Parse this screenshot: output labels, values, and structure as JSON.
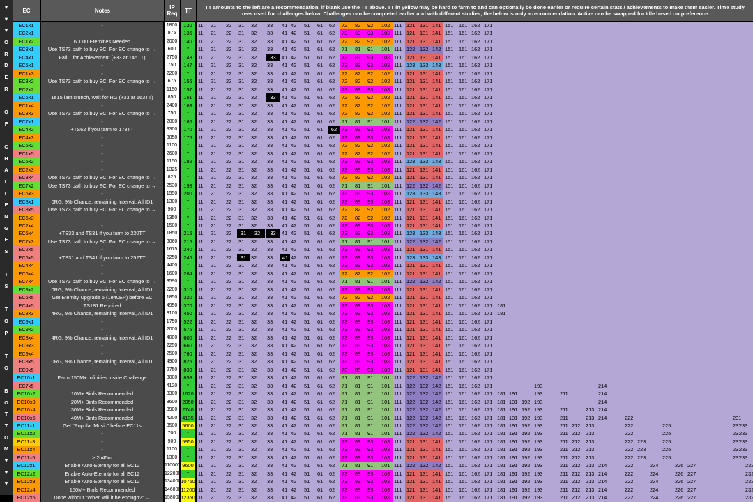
{
  "sidebar_text": "▼▼▼ORDER OF CHALLENGES IS TOP TO BOTTOM▼▼▼",
  "headers": {
    "ec": "EC",
    "notes": "Notes",
    "ip_req": "IP Req",
    "tt": "TT",
    "banner": "TT amounts to the left are a recommendation, if blank use the TT above. TT in yellow may be hard to farm to and can optionally be done earlier or require certain stats / achievements to make them easier. Time study trees used for challenges below. Challenges can be completed earlier and with different studies, the below is only a recommendation. Active can be swapped for Idle based on preference."
  },
  "colors": {
    "ec_cyan": "#33ccff",
    "ec_green": "#66dd33",
    "ec_orange": "#ff9900",
    "ec_pink": "#f08080",
    "ec_yellow": "#ffcc00",
    "tt_green": "#33cc33",
    "tt_yellow": "#ffff00",
    "tree_lavender": "#b4a7d6",
    "tree_orange": "#ff9900",
    "tree_magenta": "#ff00ff",
    "tree_green": "#93c47d",
    "tree_red": "#e06666",
    "tree_blue": "#6fa8dc",
    "tree_purple": "#8e7cc3"
  },
  "rows": [
    {
      "ec": "EC1x1",
      "ecc": "c",
      "note": "-",
      "ip": "1800",
      "tt": "130",
      "path": "A",
      "x": {}
    },
    {
      "ec": "EC2x1",
      "ecc": "c",
      "note": "-",
      "ip": "975",
      "tt": "135",
      "path": "I",
      "x": {}
    },
    {
      "ec": "EC1x2",
      "ecc": "g",
      "note": "60000 Eternities Needed",
      "ip": "2000",
      "tt": "140",
      "path": "A",
      "x": {
        "11": "1",
        "21": "1"
      }
    },
    {
      "ec": "EC3x1",
      "ecc": "c",
      "note": "Use TS73 path to buy EC, For EC change to →",
      "ip": "600",
      "tt": "\"",
      "path": "P",
      "x": {}
    },
    {
      "ec": "EC4x1",
      "ecc": "c",
      "note": "Fail 1 for Achievement (+33 at 145TT)",
      "ip": "2750",
      "tt": "143",
      "path": "I",
      "x": {
        "33": "dk"
      }
    },
    {
      "ec": "EC5x1",
      "ecc": "c",
      "note": "-",
      "ip": "750",
      "tt": "147",
      "path": "S",
      "x": {}
    },
    {
      "ec": "EC1x3",
      "ecc": "o",
      "note": "-",
      "ip": "2200",
      "tt": "\"",
      "path": "A",
      "x": {}
    },
    {
      "ec": "EC3x2",
      "ecc": "g",
      "note": "Use TS73 path to buy EC, For EC change to →",
      "ip": "675",
      "tt": "155",
      "path": "A",
      "x": {}
    },
    {
      "ec": "EC2x2",
      "ecc": "g",
      "note": "-",
      "ip": "1150",
      "tt": "157",
      "path": "I",
      "x": {}
    },
    {
      "ec": "EC6x1",
      "ecc": "c",
      "note": "1e15 last crunch, wait for RG (+33 at 163TT)",
      "ip": "850",
      "tt": "161",
      "path": "A",
      "x": {
        "33": "dk"
      }
    },
    {
      "ec": "EC1x4",
      "ecc": "o",
      "note": "-",
      "ip": "2400",
      "tt": "163",
      "path": "A",
      "x": {}
    },
    {
      "ec": "EC3x3",
      "ecc": "o",
      "note": "Use TS73 path to buy EC, For EC change to →",
      "ip": "750",
      "tt": "\"",
      "path": "A",
      "x": {}
    },
    {
      "ec": "EC7x1",
      "ecc": "c",
      "note": "-",
      "ip": "2000",
      "tt": "166",
      "path": "P",
      "x": {}
    },
    {
      "ec": "EC4x2",
      "ecc": "g",
      "note": "+TS62 if you farm to 173TT",
      "ip": "3300",
      "tt": "170",
      "path": "I",
      "x": {
        "62": "dk"
      }
    },
    {
      "ec": "EC4x3",
      "ecc": "o",
      "note": "-",
      "ip": "3850",
      "tt": "176",
      "path": "I",
      "x": {}
    },
    {
      "ec": "EC6x2",
      "ecc": "g",
      "note": "-",
      "ip": "1100",
      "tt": "\"",
      "path": "A",
      "x": {}
    },
    {
      "ec": "EC1x5",
      "ecc": "p",
      "note": "-",
      "ip": "2600",
      "tt": "\"",
      "path": "A",
      "x": {}
    },
    {
      "ec": "EC5x2",
      "ecc": "g",
      "note": "-",
      "ip": "1150",
      "tt": "182",
      "path": "S",
      "x": {}
    },
    {
      "ec": "EC2x3",
      "ecc": "o",
      "note": "-",
      "ip": "1325",
      "tt": "\"",
      "path": "I",
      "x": {}
    },
    {
      "ec": "EC3x4",
      "ecc": "p",
      "note": "Use TS73 path to buy EC, For EC change to →",
      "ip": "825",
      "tt": "\"",
      "path": "A",
      "x": {}
    },
    {
      "ec": "EC7x2",
      "ecc": "g",
      "note": "Use TS73 path to buy EC, For EC change to →",
      "ip": "2530",
      "tt": "193",
      "path": "P",
      "x": {}
    },
    {
      "ec": "EC5x3",
      "ecc": "o",
      "note": "-",
      "ip": "1550",
      "tt": "200",
      "path": "S",
      "x": {}
    },
    {
      "ec": "EC8x1",
      "ecc": "c",
      "note": "0RG, 9% Chance, remaining Interval, All ID1",
      "ip": "1300",
      "tt": "\"",
      "path": "I",
      "x": {}
    },
    {
      "ec": "EC3x5",
      "ecc": "p",
      "note": "Use TS73 path to buy EC, For EC change to →",
      "ip": "900",
      "tt": "\"",
      "path": "A",
      "x": {}
    },
    {
      "ec": "EC6x3",
      "ecc": "o",
      "note": "-",
      "ip": "1350",
      "tt": "\"",
      "path": "A",
      "x": {}
    },
    {
      "ec": "EC2x4",
      "ecc": "o",
      "note": "-",
      "ip": "1500",
      "tt": "\"",
      "path": "I",
      "x": {}
    },
    {
      "ec": "EC5x4",
      "ecc": "o",
      "note": "+TS33 and TS31 if you farm to 220TT",
      "ip": "1850",
      "tt": "215",
      "path": "S",
      "x": {
        "31": "dk",
        "32": "dk",
        "33": "dk"
      }
    },
    {
      "ec": "EC7x3",
      "ecc": "o",
      "note": "Use TS73 path to buy EC, For EC change to →",
      "ip": "3060",
      "tt": "215",
      "path": "P",
      "x": {}
    },
    {
      "ec": "EC2x5",
      "ecc": "p",
      "note": "-",
      "ip": "1675",
      "tt": "240",
      "path": "I",
      "x": {}
    },
    {
      "ec": "EC5x5",
      "ecc": "p",
      "note": "+TS31 and TS41 if you farm to 252TT",
      "ip": "2250",
      "tt": "245",
      "path": "S",
      "x": {
        "31": "dk",
        "41": "dk"
      }
    },
    {
      "ec": "EC4x4",
      "ecc": "o",
      "note": "-",
      "ip": "4400",
      "tt": "\"",
      "path": "I",
      "x": {}
    },
    {
      "ec": "EC6x4",
      "ecc": "o",
      "note": "-",
      "ip": "1600",
      "tt": "264",
      "path": "A",
      "x": {}
    },
    {
      "ec": "EC7x4",
      "ecc": "o",
      "note": "Use TS73 path to buy EC, For EC change to →",
      "ip": "3590",
      "tt": "\"",
      "path": "P",
      "x": {}
    },
    {
      "ec": "EC8x2",
      "ecc": "g",
      "note": "0RG, 9% Chance, remaining Interval, All ID1",
      "ip": "2200",
      "tt": "310",
      "path": "I",
      "x": {}
    },
    {
      "ec": "EC6x5",
      "ecc": "p",
      "note": "Get Eternity Upgrade 5 (1e40EP) before EC",
      "ip": "1850",
      "tt": "320",
      "path": "A",
      "x": {}
    },
    {
      "ec": "EC4x5",
      "ecc": "p",
      "note": "TS181 Required",
      "ip": "4950",
      "tt": "370",
      "path": "I",
      "x": {
        "181": "1"
      }
    },
    {
      "ec": "EC8x3",
      "ecc": "o",
      "note": "4RG, 9% Chance, remaining Interval, All ID1",
      "ip": "3100",
      "tt": "450",
      "path": "I",
      "x": {
        "181": "1"
      }
    },
    {
      "ec": "EC9x1",
      "ecc": "c",
      "note": "-",
      "ip": "1750",
      "tt": "522",
      "path": "I",
      "x": {}
    },
    {
      "ec": "EC9x2",
      "ecc": "g",
      "note": "-",
      "ip": "2000",
      "tt": "575",
      "path": "I",
      "x": {}
    },
    {
      "ec": "EC8x4",
      "ecc": "o",
      "note": "4RG, 9% Chance, remaining Interval, All ID1",
      "ip": "4000",
      "tt": "600",
      "path": "I",
      "x": {}
    },
    {
      "ec": "EC9x3",
      "ecc": "o",
      "note": "-",
      "ip": "2250",
      "tt": "660",
      "path": "I",
      "x": {}
    },
    {
      "ec": "EC9x4",
      "ecc": "o",
      "note": "-",
      "ip": "2500",
      "tt": "760",
      "path": "I",
      "x": {}
    },
    {
      "ec": "EC8x5",
      "ecc": "p",
      "note": "0RG, 9% Chance, remaining Interval, All ID1",
      "ip": "4900",
      "tt": "825",
      "path": "I",
      "x": {}
    },
    {
      "ec": "EC9x5",
      "ecc": "p",
      "note": "-",
      "ip": "2750",
      "tt": "830",
      "path": "I",
      "x": {}
    },
    {
      "ec": "EC10x1",
      "ecc": "c",
      "note": "Farm 150M+ Infinities inside Challenge",
      "ip": "3000",
      "tt": "858",
      "path": "P",
      "x": {}
    },
    {
      "ec": "EC7x5",
      "ecc": "p",
      "note": "-",
      "ip": "4120",
      "tt": "\"",
      "path": "P",
      "x": {
        "193": "1",
        "214": "1"
      }
    },
    {
      "ec": "EC10x2",
      "ecc": "g",
      "note": "10M+ Binfs Recommended",
      "ip": "3300",
      "tt": "1620",
      "path": "P",
      "x": {
        "181": "1",
        "191": "1",
        "193": "1",
        "211": "1",
        "214": "1"
      }
    },
    {
      "ec": "EC10x3",
      "ecc": "o",
      "note": "20M+ Binfs Recommended",
      "ip": "3600",
      "tt": "2050",
      "path": "P",
      "x": {
        "181": "1",
        "191": "1",
        "192": "1",
        "193": "1",
        "214": "1"
      }
    },
    {
      "ec": "EC10x4",
      "ecc": "o",
      "note": "30M+ Binfs Recommended",
      "ip": "3900",
      "tt": "2740",
      "path": "P",
      "x": {
        "181": "1",
        "191": "1",
        "192": "1",
        "193": "1",
        "211": "1",
        "213": "1",
        "214": "1"
      }
    },
    {
      "ec": "EC10x5",
      "ecc": "p",
      "note": "40M+ Binfs Recommended",
      "ip": "4200",
      "tt": "4135",
      "path": "P",
      "x": {
        "181": "1",
        "191": "1",
        "192": "1",
        "193": "1",
        "211": "1",
        "213": "1",
        "214": "1",
        "222": "1",
        "231": "1"
      }
    },
    {
      "ec": "EC11x1",
      "ecc": "c",
      "note": "Get \"Popular Music\" before EC11s",
      "ip": "3500",
      "tt": "5600",
      "path": "P",
      "x": {
        "181": "1",
        "191": "1",
        "192": "1",
        "193": "1",
        "211": "1",
        "212": "1",
        "213": "1",
        "222": "1",
        "225": "1",
        "231": "1",
        "233": "1"
      }
    },
    {
      "ec": "EC11x2",
      "ecc": "g",
      "note": "-",
      "ip": "700",
      "tt": "\"",
      "path": "P",
      "x": {
        "181": "1",
        "191": "1",
        "192": "1",
        "193": "1",
        "211": "1",
        "212": "1",
        "213": "1",
        "222": "1",
        "225": "1",
        "231": "1",
        "233": "1"
      }
    },
    {
      "ec": "EC11x3",
      "ecc": "y",
      "note": "-",
      "ip": "900",
      "tt": "5950",
      "path": "I",
      "x": {
        "181": "1",
        "191": "1",
        "192": "1",
        "193": "1",
        "211": "1",
        "212": "1",
        "213": "1",
        "222": "1",
        "223": "1",
        "225": "1",
        "231": "1",
        "233": "1"
      }
    },
    {
      "ec": "EC11x4",
      "ecc": "o",
      "note": "-",
      "ip": "1100",
      "tt": "\"",
      "path": "I",
      "x": {
        "181": "1",
        "191": "1",
        "192": "1",
        "193": "1",
        "211": "1",
        "212": "1",
        "213": "1",
        "222": "1",
        "223": "1",
        "225": "1",
        "231": "1",
        "233": "1"
      }
    },
    {
      "ec": "EC11x5",
      "ecc": "p",
      "note": "≥ 2h45m",
      "ip": "1300",
      "tt": "\"",
      "path": "I",
      "x": {
        "181": "1",
        "191": "1",
        "192": "1",
        "193": "1",
        "211": "1",
        "212": "1",
        "213": "1",
        "222": "1",
        "223": "1",
        "225": "1",
        "231": "1",
        "233": "1"
      }
    },
    {
      "ec": "EC12x1",
      "ecc": "c",
      "note": "Enable Auto-Eternity for all EC12",
      "ip": "110000",
      "tt": "9600",
      "path": "P",
      "x": {
        "181": "1",
        "191": "1",
        "192": "1",
        "193": "1",
        "211": "1",
        "212": "1",
        "213": "1",
        "214": "1",
        "222": "1",
        "224": "1",
        "226": "1",
        "227": "1",
        "232": "1",
        "234": "1"
      }
    },
    {
      "ec": "EC12x2",
      "ecc": "g",
      "note": "Enable Auto-Eternity for all EC12",
      "ip": "122000",
      "tt": "\"",
      "path": "I",
      "x": {
        "181": "1",
        "191": "1",
        "192": "1",
        "193": "1",
        "211": "1",
        "212": "1",
        "213": "1",
        "214": "1",
        "222": "1",
        "224": "1",
        "226": "1",
        "227": "1",
        "232": "1",
        "234": "1"
      }
    },
    {
      "ec": "EC12x3",
      "ecc": "o",
      "note": "Enable Auto-Eternity for all EC12",
      "ip": "134000",
      "tt": "10750",
      "path": "I",
      "x": {
        "181": "1",
        "191": "1",
        "192": "1",
        "193": "1",
        "211": "1",
        "212": "1",
        "213": "1",
        "214": "1",
        "222": "1",
        "224": "1",
        "226": "1",
        "227": "1",
        "232": "1",
        "234": "1"
      }
    },
    {
      "ec": "EC12x4",
      "ecc": "o",
      "note": "150M+ Binfs Recommended",
      "ip": "146000",
      "tt": "11200",
      "path": "I",
      "x": {
        "181": "1",
        "191": "1",
        "192": "1",
        "193": "1",
        "211": "1",
        "212": "1",
        "213": "1",
        "214": "1",
        "222": "1",
        "224": "1",
        "226": "1",
        "227": "1",
        "232": "1",
        "234": "1"
      }
    },
    {
      "ec": "EC12x5",
      "ecc": "p",
      "note": "Done without \"When will it be enough?\" →",
      "ip": "158000",
      "tt": "12350",
      "path": "I",
      "x": {
        "181": "1",
        "191": "1",
        "192": "1",
        "193": "1",
        "211": "1",
        "212": "1",
        "213": "1",
        "214": "1",
        "222": "1",
        "224": "1",
        "226": "1",
        "227": "1",
        "232": "1",
        "234": "1"
      }
    }
  ]
}
